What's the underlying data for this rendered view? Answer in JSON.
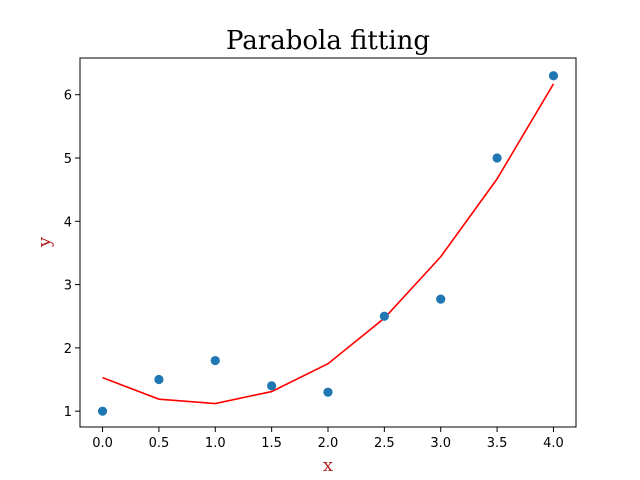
{
  "chart_data": {
    "type": "scatter",
    "title": "Parabola fitting",
    "xlabel": "x",
    "ylabel": "y",
    "xlim": [
      -0.2,
      4.2
    ],
    "ylim": [
      0.75,
      6.58
    ],
    "xticks": [
      "0.0",
      "0.5",
      "1.0",
      "1.5",
      "2.0",
      "2.5",
      "3.0",
      "3.5",
      "4.0"
    ],
    "yticks": [
      "1",
      "2",
      "3",
      "4",
      "5",
      "6"
    ],
    "grid": false,
    "label_color": "#b22222",
    "series": [
      {
        "type": "scatter",
        "color": "#1f77b4",
        "x": [
          0.0,
          0.5,
          1.0,
          1.5,
          2.0,
          2.5,
          3.0,
          3.5,
          4.0
        ],
        "y": [
          1.0,
          1.5,
          1.8,
          1.4,
          1.3,
          2.5,
          2.77,
          5.0,
          6.3
        ]
      },
      {
        "type": "line",
        "color": "#ff0000",
        "x": [
          0.0,
          0.5,
          1.0,
          1.5,
          2.0,
          2.5,
          3.0,
          3.5,
          4.0
        ],
        "y": [
          1.53,
          1.19,
          1.12,
          1.31,
          1.75,
          2.47,
          3.44,
          4.67,
          6.17
        ]
      }
    ]
  }
}
